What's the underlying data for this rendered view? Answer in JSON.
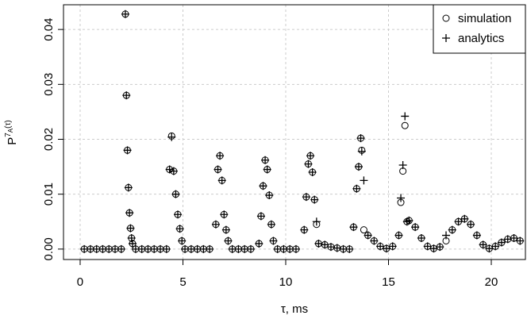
{
  "chart_data": {
    "type": "scatter",
    "xlabel": "τ, ms",
    "ylabel": {
      "base": "P",
      "sup": "7",
      "sub": "A",
      "arg": "(τ)"
    },
    "x": [
      0.2,
      0.5,
      0.8,
      1.1,
      1.4,
      1.7,
      2.0,
      2.2,
      2.25,
      2.3,
      2.35,
      2.4,
      2.45,
      2.5,
      2.55,
      2.7,
      3.0,
      3.3,
      3.6,
      3.9,
      4.2,
      4.35,
      4.45,
      4.55,
      4.65,
      4.75,
      4.85,
      4.95,
      5.1,
      5.4,
      5.7,
      6.0,
      6.3,
      6.6,
      6.7,
      6.8,
      6.9,
      7.0,
      7.1,
      7.2,
      7.4,
      7.7,
      8.0,
      8.3,
      8.7,
      8.8,
      8.9,
      9.0,
      9.1,
      9.2,
      9.3,
      9.4,
      9.6,
      9.9,
      10.2,
      10.5,
      10.9,
      11.0,
      11.1,
      11.2,
      11.3,
      11.4,
      11.5,
      11.6,
      11.9,
      12.2,
      12.5,
      12.8,
      13.1,
      13.3,
      13.45,
      13.55,
      13.65,
      13.7,
      13.8,
      14.0,
      14.3,
      14.6,
      14.9,
      15.2,
      15.5,
      15.6,
      15.7,
      15.8,
      15.9,
      16.0,
      16.3,
      16.6,
      16.9,
      17.2,
      17.5,
      17.8,
      18.1,
      18.4,
      18.7,
      19.0,
      19.3,
      19.6,
      19.9,
      20.2,
      20.5,
      20.8,
      21.1,
      21.4
    ],
    "series": [
      {
        "name": "simulation",
        "marker": "circle",
        "color": "#000000",
        "values": [
          0,
          0,
          0,
          0,
          0,
          0,
          0,
          0.0428,
          0.028,
          0.018,
          0.0112,
          0.0066,
          0.0038,
          0.002,
          0.001,
          0,
          0,
          0,
          0,
          0,
          0,
          0.0145,
          0.0206,
          0.0142,
          0.01,
          0.0063,
          0.0037,
          0.0015,
          0,
          0,
          0,
          0,
          0,
          0.0045,
          0.0145,
          0.017,
          0.0125,
          0.0063,
          0.0035,
          0.0015,
          0,
          0,
          0,
          0,
          0.001,
          0.006,
          0.0115,
          0.0162,
          0.0145,
          0.0098,
          0.0045,
          0.0015,
          0,
          0,
          0,
          0,
          0.0035,
          0.0095,
          0.0155,
          0.017,
          0.014,
          0.009,
          0.0045,
          0.001,
          0.0008,
          0.0004,
          0.0002,
          0,
          0,
          0.004,
          0.011,
          0.015,
          0.0202,
          0.018,
          0.0035,
          0.0025,
          0.0015,
          0.0005,
          0.0001,
          0.0005,
          0.0025,
          0.0085,
          0.0142,
          0.0225,
          0.005,
          0.0052,
          0.004,
          0.002,
          0.0005,
          0.0001,
          0.0004,
          0.0015,
          0.0035,
          0.005,
          0.0055,
          0.0045,
          0.0025,
          0.0008,
          0.0001,
          0.0005,
          0.0012,
          0.0018,
          0.002,
          0.0015
        ]
      },
      {
        "name": "analytics",
        "marker": "plus",
        "color": "#000000",
        "values": [
          0,
          0,
          0,
          0,
          0,
          0,
          0,
          0.0428,
          0.028,
          0.018,
          0.0112,
          0.0066,
          0.0038,
          0.002,
          0.001,
          0,
          0,
          0,
          0,
          0,
          0,
          0.0145,
          0.0204,
          0.0142,
          0.01,
          0.0063,
          0.0037,
          0.0015,
          0,
          0,
          0,
          0,
          0,
          0.0045,
          0.0145,
          0.017,
          0.0125,
          0.0063,
          0.0035,
          0.0015,
          0,
          0,
          0,
          0,
          0.001,
          0.006,
          0.0115,
          0.0162,
          0.0145,
          0.0098,
          0.0045,
          0.0015,
          0,
          0,
          0,
          0,
          0.0035,
          0.0095,
          0.0155,
          0.017,
          0.014,
          0.009,
          0.005,
          0.001,
          0.0008,
          0.0004,
          0.0002,
          0,
          0,
          0.004,
          0.011,
          0.015,
          0.0202,
          0.0178,
          0.0125,
          0.0025,
          0.0015,
          0.0005,
          0.0001,
          0.0005,
          0.0025,
          0.0093,
          0.0153,
          0.0242,
          0.005,
          0.0052,
          0.004,
          0.002,
          0.0005,
          0.0001,
          0.0004,
          0.0025,
          0.0035,
          0.005,
          0.0055,
          0.0045,
          0.0025,
          0.0008,
          0.0001,
          0.0005,
          0.0012,
          0.0018,
          0.002,
          0.0015
        ]
      }
    ],
    "xlim": [
      -0.81,
      21.66
    ],
    "ylim": [
      -0.0019,
      0.0445
    ],
    "xticks": [
      0,
      5,
      10,
      15,
      20
    ],
    "yticks": [
      {
        "value": 0,
        "label": "0.00"
      },
      {
        "value": 0.01,
        "label": "0.01"
      },
      {
        "value": 0.02,
        "label": "0.02"
      },
      {
        "value": 0.03,
        "label": "0.03"
      },
      {
        "value": 0.04,
        "label": "0.04"
      }
    ],
    "grid": true,
    "legend": "topright"
  }
}
